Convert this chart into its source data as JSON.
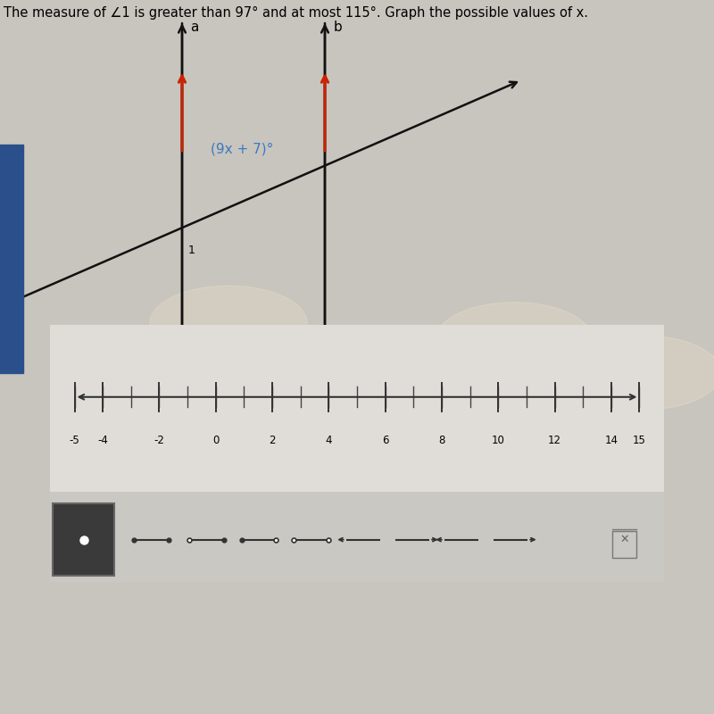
{
  "title": "The measure of ∠1 is greater than 97° and at most 115°. Graph the possible values of x.",
  "bg_color": "#c8c4be",
  "diagram_bg": "#c8c4be",
  "panel_bg": "#e0ddd8",
  "panel_border": "#aaa89f",
  "toolbar_bg": "#cac8c3",
  "numberline_bg": "#dedad5",
  "angle_label": "(9x + 7)°",
  "angle_label_color": "#3a7abf",
  "arrow_color": "#cc2200",
  "line_color": "#111111",
  "blue_sidebar_color": "#2a4f8a",
  "tick_labels": [
    "-5",
    "-4",
    "-2",
    "0",
    "2",
    "4",
    "6",
    "8",
    "10",
    "12",
    "14",
    "15"
  ],
  "tick_values": [
    -5,
    -4,
    -2,
    0,
    2,
    4,
    6,
    8,
    10,
    12,
    14,
    15
  ],
  "title_fontsize": 10.5,
  "label_fontsize": 11,
  "annot_fontsize": 10,
  "white_glow_1": [
    0.32,
    0.22
  ],
  "white_glow_2": [
    0.72,
    0.18
  ],
  "white_glow_3": [
    0.9,
    0.1
  ]
}
